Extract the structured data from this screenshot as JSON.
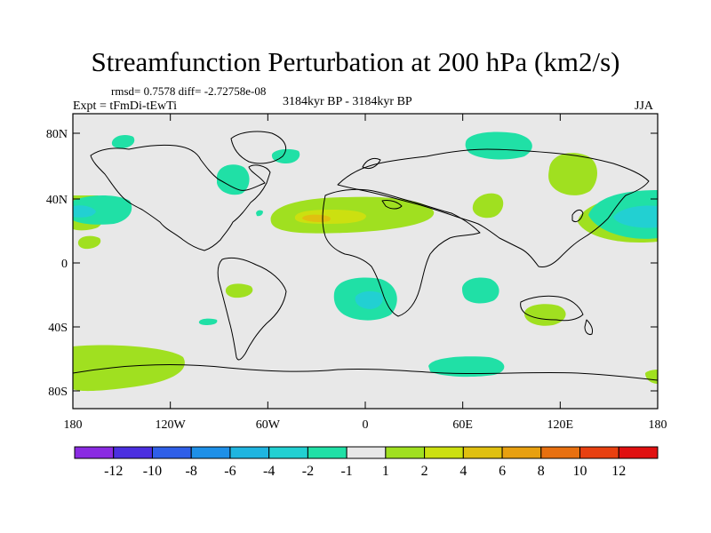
{
  "title": "Streamfunction Perturbation at 200 hPa (km2/s)",
  "stats": "rmsd= 0.7578 diff= -2.72758e-08",
  "expt": "Expt = tFmDi-tEwTi",
  "period": "3184kyr BP - 3184kyr BP",
  "season": "JJA",
  "axes": {
    "lat_ticks": [
      "80N",
      "40N",
      "0",
      "40S",
      "80S"
    ],
    "lon_ticks": [
      "180",
      "120W",
      "60W",
      "0",
      "60E",
      "120E",
      "180"
    ]
  },
  "colorbar": {
    "labels": [
      "-12",
      "-10",
      "-8",
      "-6",
      "-4",
      "-2",
      "-1",
      "1",
      "2",
      "4",
      "6",
      "8",
      "10",
      "12"
    ],
    "colors": [
      "#8a2be2",
      "#4b2fe0",
      "#2f5fe8",
      "#1e90e8",
      "#1fb5e0",
      "#22d0d2",
      "#20e0a6",
      "#e8e8e8",
      "#a0e020",
      "#cce010",
      "#e0c010",
      "#e8a010",
      "#e87010",
      "#e84010",
      "#e01010"
    ]
  },
  "map": {
    "background": "#e8e8e8",
    "units": "km2/s",
    "level": "200 hPa"
  }
}
